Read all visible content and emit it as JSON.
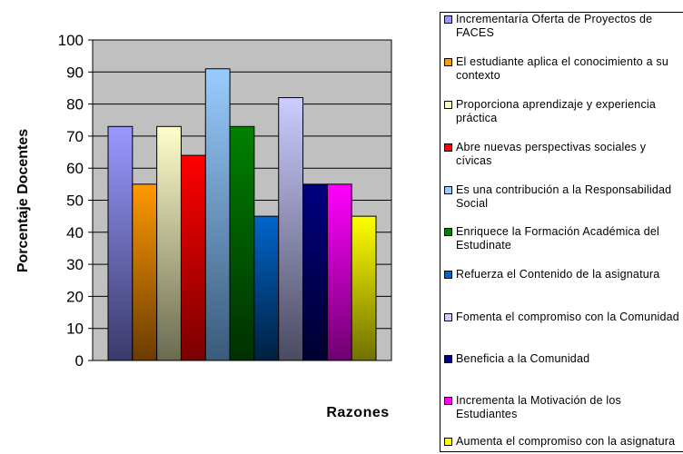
{
  "chart_data": {
    "type": "bar",
    "xlabel": "Razones",
    "ylabel": "Porcentaje Docentes",
    "ylim": [
      0,
      100
    ],
    "yticks": [
      0,
      10,
      20,
      30,
      40,
      50,
      60,
      70,
      80,
      90,
      100
    ],
    "grid": true,
    "legend_position": "right",
    "series": [
      {
        "name": "Incrementaría Oferta de Proyectos de FACES",
        "value": 73,
        "color": "#9999ff",
        "shade": "#3a3a6a"
      },
      {
        "name": "El estudiante aplica el conocimiento a su contexto",
        "value": 55,
        "color": "#ff9900",
        "shade": "#6a3c00"
      },
      {
        "name": "Proporciona aprendizaje y experiencia práctica",
        "value": 73,
        "color": "#ffffcc",
        "shade": "#6a6a50"
      },
      {
        "name": "Abre nuevas perspectivas sociales y cívicas",
        "value": 64,
        "color": "#ff0000",
        "shade": "#7a0000"
      },
      {
        "name": "Es una contribución a la Responsabilidad Social",
        "value": 91,
        "color": "#99ccff",
        "shade": "#3a5a7a"
      },
      {
        "name": "Enriquece la Formación Académica del Estudinate",
        "value": 73,
        "color": "#008000",
        "shade": "#003000"
      },
      {
        "name": "Refuerza el Contenido de la asignatura",
        "value": 45,
        "color": "#0066cc",
        "shade": "#002040"
      },
      {
        "name": "Fomenta el compromiso con la Comunidad",
        "value": 82,
        "color": "#ccccff",
        "shade": "#4a4a60"
      },
      {
        "name": "Beneficia a la Comunidad",
        "value": 55,
        "color": "#000080",
        "shade": "#000030"
      },
      {
        "name": "Incrementa la Motivación de los Estudiantes",
        "value": 55,
        "color": "#ff00ff",
        "shade": "#700070"
      },
      {
        "name": "Aumenta el compromiso con la asignatura",
        "value": 45,
        "color": "#ffff00",
        "shade": "#707000"
      }
    ]
  }
}
